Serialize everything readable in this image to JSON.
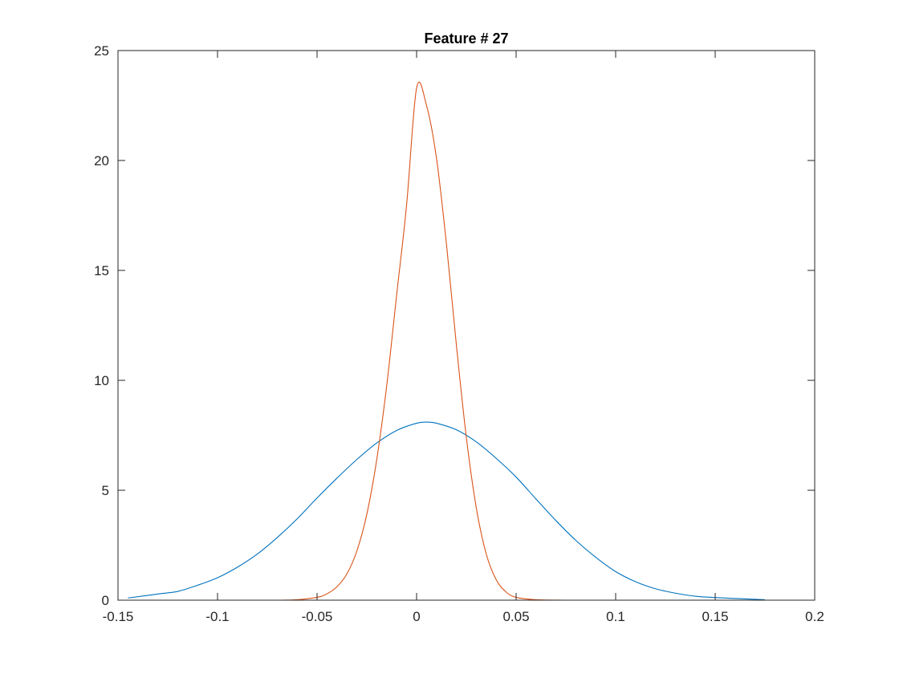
{
  "chart_data": {
    "type": "line",
    "title": "Feature # 27",
    "xlabel": "",
    "ylabel": "",
    "xlim": [
      -0.15,
      0.2
    ],
    "ylim": [
      0,
      25
    ],
    "x_ticks": [
      -0.15,
      -0.1,
      -0.05,
      0,
      0.05,
      0.1,
      0.15,
      0.2
    ],
    "x_tick_labels": [
      "-0.15",
      "-0.1",
      "-0.05",
      "0",
      "0.05",
      "0.1",
      "0.15",
      "0.2"
    ],
    "y_ticks": [
      0,
      5,
      10,
      15,
      20,
      25
    ],
    "y_tick_labels": [
      "0",
      "5",
      "10",
      "15",
      "20",
      "25"
    ],
    "grid": false,
    "series": [
      {
        "color": "#0072BD",
        "x": [
          -0.145,
          -0.13,
          -0.12,
          -0.11,
          -0.1,
          -0.09,
          -0.08,
          -0.07,
          -0.06,
          -0.05,
          -0.04,
          -0.03,
          -0.02,
          -0.01,
          0,
          0.005,
          0.01,
          0.02,
          0.03,
          0.04,
          0.05,
          0.06,
          0.07,
          0.08,
          0.09,
          0.1,
          0.11,
          0.12,
          0.13,
          0.14,
          0.15,
          0.16,
          0.175
        ],
        "y": [
          0.1,
          0.28,
          0.4,
          0.68,
          1.02,
          1.5,
          2.1,
          2.85,
          3.7,
          4.65,
          5.55,
          6.4,
          7.15,
          7.72,
          8.05,
          8.1,
          8.05,
          7.75,
          7.2,
          6.45,
          5.6,
          4.6,
          3.62,
          2.72,
          1.95,
          1.3,
          0.84,
          0.52,
          0.32,
          0.18,
          0.12,
          0.08,
          0.02
        ]
      },
      {
        "color": "#D95319",
        "x": [
          -0.068,
          -0.06,
          -0.05,
          -0.045,
          -0.04,
          -0.035,
          -0.03,
          -0.025,
          -0.02,
          -0.015,
          -0.01,
          -0.005,
          0,
          0.005,
          0.01,
          0.015,
          0.02,
          0.025,
          0.03,
          0.035,
          0.04,
          0.045,
          0.05,
          0.06,
          0.074
        ],
        "y": [
          0,
          0.02,
          0.13,
          0.29,
          0.61,
          1.2,
          2.24,
          3.91,
          6.4,
          9.77,
          13.9,
          18.0,
          23.3,
          22.5,
          20.1,
          16.2,
          11.6,
          7.4,
          4.2,
          2.1,
          0.93,
          0.37,
          0.13,
          0.02,
          0
        ]
      }
    ]
  }
}
